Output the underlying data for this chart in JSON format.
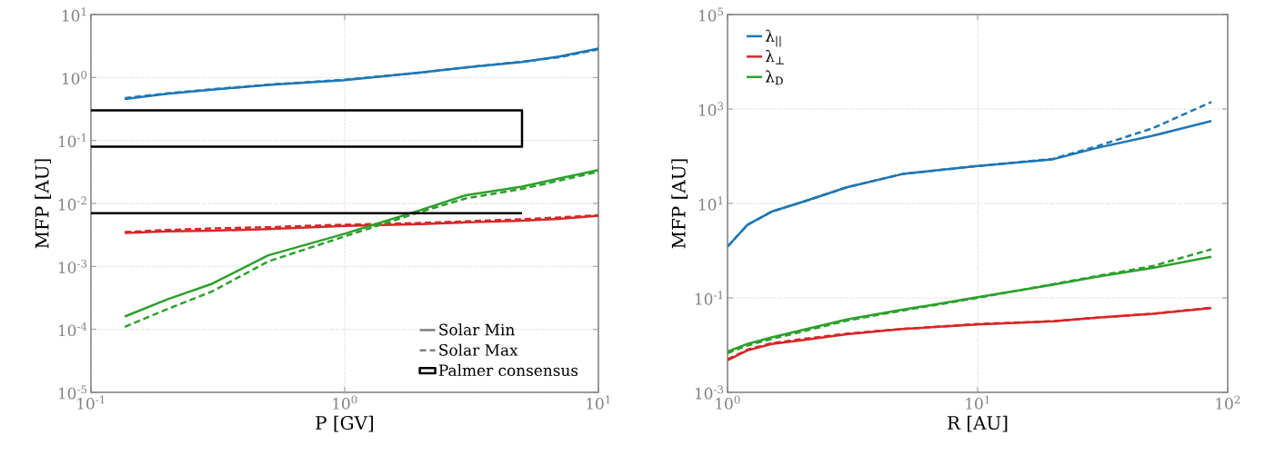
{
  "chart_data": [
    {
      "type": "line",
      "xlabel": "P [GV]",
      "ylabel": "MFP [AU]",
      "log": "xy",
      "grid": true,
      "legend": "bottom right",
      "annotations": [
        "Solar Min",
        "Solar Max"
      ],
      "xlim": [
        0.1,
        10
      ],
      "ylim": [
        1e-05,
        10
      ],
      "xticks": [
        {
          "value": 0.1,
          "label": "10$^{-1}$"
        },
        {
          "value": 1,
          "label": "10$^{0}$"
        },
        {
          "value": 10,
          "label": "10$^{1}$"
        }
      ],
      "yticks": [
        {
          "value": 1e-05,
          "label": "10$^{-5}$"
        },
        {
          "value": 0.0001,
          "label": "10$^{-4}$"
        },
        {
          "value": 0.001,
          "label": "10$^{-3}$"
        },
        {
          "value": 0.01,
          "label": "10$^{-2}$"
        },
        {
          "value": 0.1,
          "label": "10$^{-1}$"
        },
        {
          "value": 1,
          "label": "10$^{0}$"
        },
        {
          "value": 10,
          "label": "10$^{1}$"
        }
      ],
      "series": [
        {
          "color": "#1f77b4",
          "line_style": "solid",
          "x": [
            0.136,
            0.2,
            0.3,
            0.5,
            1,
            2,
            3,
            5,
            7,
            10
          ],
          "values": [
            0.455,
            0.55,
            0.64,
            0.76,
            0.91,
            1.2,
            1.44,
            1.77,
            2.15,
            2.87
          ]
        },
        {
          "color": "#1f77b4",
          "line_style": "dashed",
          "x": [
            0.136,
            0.2,
            0.3,
            0.5,
            1,
            2,
            3,
            5,
            7,
            10
          ],
          "values": [
            0.47,
            0.56,
            0.65,
            0.77,
            0.92,
            1.2,
            1.45,
            1.78,
            2.1,
            2.8
          ]
        },
        {
          "color": "#d62728",
          "line_style": "solid",
          "x": [
            0.136,
            0.2,
            0.3,
            0.5,
            1,
            2,
            3,
            5,
            7,
            10
          ],
          "values": [
            0.0034,
            0.0036,
            0.0037,
            0.0039,
            0.0044,
            0.0047,
            0.005,
            0.0053,
            0.0057,
            0.0064
          ]
        },
        {
          "color": "#d62728",
          "line_style": "dashed",
          "x": [
            0.136,
            0.2,
            0.3,
            0.5,
            1,
            2,
            3,
            5,
            7,
            10
          ],
          "values": [
            0.0035,
            0.0038,
            0.004,
            0.0042,
            0.0046,
            0.0049,
            0.0052,
            0.0056,
            0.006,
            0.0065
          ]
        },
        {
          "color": "#2ca02c",
          "line_style": "solid",
          "x": [
            0.136,
            0.2,
            0.3,
            0.5,
            1,
            2,
            3,
            5,
            7,
            10
          ],
          "values": [
            0.00016,
            0.0003,
            0.00053,
            0.0015,
            0.0033,
            0.0079,
            0.0135,
            0.0185,
            0.025,
            0.034
          ]
        },
        {
          "color": "#2ca02c",
          "line_style": "dashed",
          "x": [
            0.136,
            0.2,
            0.3,
            0.5,
            1,
            2,
            3,
            5,
            7,
            10
          ],
          "values": [
            0.00011,
            0.00021,
            0.0004,
            0.0012,
            0.003,
            0.0074,
            0.012,
            0.017,
            0.023,
            0.032
          ]
        },
        {
          "name": "Palmer consensus",
          "color": "#000000",
          "line_style": "solid",
          "x": [
            0.1,
            5,
            5,
            0.1
          ],
          "values": [
            0.3,
            0.3,
            0.08,
            0.08
          ]
        },
        {
          "color": "#000000",
          "line_style": "solid",
          "x": [
            0.1,
            5
          ],
          "values": [
            0.007,
            0.007
          ]
        }
      ]
    },
    {
      "type": "line",
      "xlabel": "R [AU]",
      "ylabel": "MFP [AU]",
      "log": "xy",
      "grid": true,
      "legend": "top left",
      "xlim": [
        1,
        100
      ],
      "ylim": [
        0.001,
        100000
      ],
      "xticks": [
        {
          "value": 1,
          "label": "10$^{0}$"
        },
        {
          "value": 10,
          "label": "10$^{1}$"
        },
        {
          "value": 100,
          "label": "10$^{2}$"
        }
      ],
      "yticks": [
        {
          "value": 0.001,
          "label": "10$^{-3}$"
        },
        {
          "value": 0.1,
          "label": "10$^{-1}$"
        },
        {
          "value": 10,
          "label": "10$^{1}$"
        },
        {
          "value": 1000,
          "label": "10$^{3}$"
        },
        {
          "value": 100000,
          "label": "10$^{5}$"
        }
      ],
      "series": [
        {
          "name": "λ$_{||}$",
          "color": "#1f77b4",
          "line_style": "solid",
          "x": [
            1,
            1.2,
            1.5,
            2,
            3,
            5,
            10,
            20,
            30,
            50,
            86
          ],
          "values": [
            1.22,
            3.5,
            6.7,
            10.8,
            22,
            42,
            62,
            86,
            150,
            270,
            555
          ]
        },
        {
          "color": "#1f77b4",
          "line_style": "dashed",
          "x": [
            1,
            1.2,
            1.5,
            2,
            3,
            5,
            10,
            20,
            30,
            50,
            86
          ],
          "values": [
            1.22,
            3.5,
            6.7,
            10.8,
            22,
            42,
            62,
            88,
            162,
            390,
            1400
          ]
        },
        {
          "name": "λ$_{⊥}$",
          "color": "#d62728",
          "line_style": "solid",
          "x": [
            1,
            1.2,
            1.5,
            2,
            3,
            5,
            10,
            20,
            30,
            50,
            86
          ],
          "values": [
            0.0048,
            0.0077,
            0.0106,
            0.0128,
            0.017,
            0.022,
            0.0275,
            0.032,
            0.038,
            0.046,
            0.061
          ]
        },
        {
          "color": "#d62728",
          "line_style": "dashed",
          "x": [
            1,
            1.2,
            1.5,
            2,
            3,
            5,
            10,
            20,
            30,
            50,
            86
          ],
          "values": [
            0.005,
            0.008,
            0.011,
            0.0135,
            0.0175,
            0.022,
            0.028,
            0.032,
            0.038,
            0.046,
            0.062
          ]
        },
        {
          "name": "λ$_{D}$",
          "color": "#2ca02c",
          "line_style": "solid",
          "x": [
            1,
            1.2,
            1.5,
            2,
            3,
            5,
            10,
            20,
            30,
            50,
            86
          ],
          "values": [
            0.0073,
            0.0106,
            0.0146,
            0.021,
            0.035,
            0.056,
            0.103,
            0.19,
            0.28,
            0.43,
            0.74
          ]
        },
        {
          "color": "#2ca02c",
          "line_style": "dashed",
          "x": [
            1,
            1.2,
            1.5,
            2,
            3,
            5,
            10,
            20,
            30,
            50,
            86
          ],
          "values": [
            0.0068,
            0.0098,
            0.0135,
            0.0195,
            0.033,
            0.054,
            0.1,
            0.195,
            0.29,
            0.47,
            1.07
          ]
        }
      ]
    }
  ]
}
